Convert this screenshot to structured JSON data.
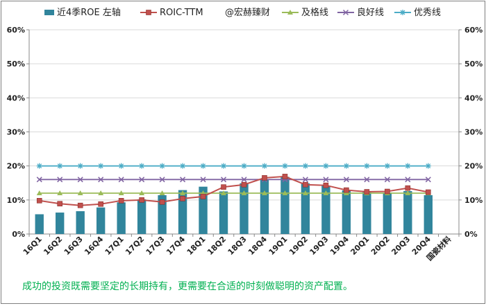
{
  "chart_data": {
    "type": "bar",
    "categories": [
      "16Q1",
      "16Q2",
      "16Q3",
      "16Q4",
      "17Q1",
      "17Q2",
      "17Q3",
      "17Q4",
      "18Q1",
      "18Q2",
      "18Q3",
      "18Q4",
      "19Q1",
      "19Q2",
      "19Q3",
      "19Q4",
      "20Q1",
      "20Q2",
      "20Q3",
      "20Q4",
      "国瓷材料"
    ],
    "y_axis": {
      "ticks": [
        "0%",
        "10%",
        "20%",
        "30%",
        "40%",
        "50%",
        "60%"
      ],
      "min": 0,
      "max": 60,
      "unit": "%",
      "gridlines": true,
      "mirrored_right": true
    },
    "legend": {
      "position": "top",
      "note": "@宏赫臻财"
    },
    "series": [
      {
        "name": "近4季ROE 左轴",
        "type": "bar",
        "color": "#31859c",
        "values": [
          5.8,
          6.3,
          6.7,
          7.8,
          9.3,
          10.2,
          11.4,
          12.9,
          13.9,
          12.5,
          14.9,
          16.1,
          16.8,
          14.9,
          14.2,
          12.8,
          12.6,
          12.2,
          12.6,
          11.4,
          null
        ]
      },
      {
        "name": "ROIC-TTM",
        "type": "line",
        "color": "#c0504d",
        "marker": "square",
        "values": [
          9.8,
          8.9,
          8.4,
          8.8,
          9.8,
          10.0,
          9.4,
          10.4,
          11.0,
          13.8,
          14.5,
          16.5,
          16.9,
          14.5,
          14.3,
          12.9,
          12.4,
          12.5,
          13.5,
          12.3,
          null
        ]
      },
      {
        "name": "及格线",
        "type": "line",
        "color": "#9bbb59",
        "marker": "triangle",
        "values": [
          12,
          12,
          12,
          12,
          12,
          12,
          12,
          12,
          12,
          12,
          12,
          12,
          12,
          12,
          12,
          12,
          12,
          12,
          12,
          12,
          null
        ]
      },
      {
        "name": "良好线",
        "type": "line",
        "color": "#8064a2",
        "marker": "x",
        "values": [
          16,
          16,
          16,
          16,
          16,
          16,
          16,
          16,
          16,
          16,
          16,
          16,
          16,
          16,
          16,
          16,
          16,
          16,
          16,
          16,
          null
        ]
      },
      {
        "name": "优秀线",
        "type": "line",
        "color": "#4bacc6",
        "marker": "star",
        "values": [
          20,
          20,
          20,
          20,
          20,
          20,
          20,
          20,
          20,
          20,
          20,
          20,
          20,
          20,
          20,
          20,
          20,
          20,
          20,
          20,
          null
        ]
      }
    ]
  },
  "footnote": "成功的投资既需要坚定的长期持有，更需要在合适的时刻做聪明的资产配置。"
}
